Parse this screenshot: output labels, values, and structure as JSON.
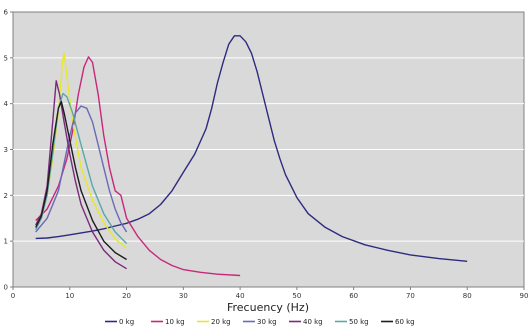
{
  "chart_data": {
    "type": "line",
    "title": "",
    "xlabel": "Frecuency (Hz)",
    "ylabel": "",
    "xlim": [
      0,
      90
    ],
    "ylim": [
      0,
      6
    ],
    "x_ticks": [
      0,
      10,
      20,
      30,
      40,
      50,
      60,
      70,
      80,
      90
    ],
    "y_ticks": [
      0,
      1,
      2,
      3,
      4,
      5,
      6
    ],
    "x_tick_labels": [
      "0",
      "10",
      "20",
      "30",
      "40",
      "50",
      "60",
      "70",
      "80",
      "90"
    ],
    "y_tick_labels": [
      "0",
      "1",
      "2",
      "3",
      "4",
      "5",
      "6"
    ],
    "grid": "horizontal",
    "legend_position": "bottom",
    "series": [
      {
        "name": "0 kg",
        "color": "#2e2a7e",
        "points": [
          [
            4,
            1.06
          ],
          [
            6,
            1.07
          ],
          [
            8,
            1.1
          ],
          [
            10,
            1.14
          ],
          [
            12,
            1.18
          ],
          [
            14,
            1.22
          ],
          [
            16,
            1.27
          ],
          [
            18,
            1.33
          ],
          [
            20,
            1.39
          ],
          [
            22,
            1.48
          ],
          [
            24,
            1.6
          ],
          [
            26,
            1.8
          ],
          [
            28,
            2.1
          ],
          [
            30,
            2.5
          ],
          [
            32,
            2.9
          ],
          [
            34,
            3.45
          ],
          [
            35,
            3.9
          ],
          [
            36,
            4.45
          ],
          [
            37,
            4.9
          ],
          [
            38,
            5.3
          ],
          [
            39,
            5.48
          ],
          [
            40,
            5.48
          ],
          [
            41,
            5.35
          ],
          [
            42,
            5.1
          ],
          [
            43,
            4.7
          ],
          [
            44,
            4.2
          ],
          [
            45,
            3.7
          ],
          [
            46,
            3.2
          ],
          [
            47,
            2.8
          ],
          [
            48,
            2.45
          ],
          [
            50,
            1.95
          ],
          [
            52,
            1.6
          ],
          [
            55,
            1.3
          ],
          [
            58,
            1.1
          ],
          [
            62,
            0.92
          ],
          [
            66,
            0.8
          ],
          [
            70,
            0.7
          ],
          [
            75,
            0.62
          ],
          [
            80,
            0.56
          ]
        ]
      },
      {
        "name": "10 kg",
        "color": "#c8287a",
        "points": [
          [
            4,
            1.45
          ],
          [
            6,
            1.7
          ],
          [
            8,
            2.2
          ],
          [
            9.5,
            2.8
          ],
          [
            10.5,
            3.4
          ],
          [
            11.5,
            4.2
          ],
          [
            12.5,
            4.8
          ],
          [
            13.3,
            5.02
          ],
          [
            14,
            4.9
          ],
          [
            15,
            4.2
          ],
          [
            16,
            3.3
          ],
          [
            17,
            2.6
          ],
          [
            18,
            2.1
          ],
          [
            19,
            2.0
          ],
          [
            20,
            1.5
          ],
          [
            22,
            1.1
          ],
          [
            24,
            0.8
          ],
          [
            26,
            0.6
          ],
          [
            28,
            0.47
          ],
          [
            30,
            0.38
          ],
          [
            33,
            0.32
          ],
          [
            36,
            0.28
          ],
          [
            40,
            0.25
          ]
        ]
      },
      {
        "name": "20 kg",
        "color": "#e8e82a",
        "points": [
          [
            4,
            1.3
          ],
          [
            5,
            1.5
          ],
          [
            6,
            2.0
          ],
          [
            7,
            2.8
          ],
          [
            8,
            3.8
          ],
          [
            8.7,
            4.9
          ],
          [
            9,
            5.1
          ],
          [
            9.5,
            4.6
          ],
          [
            10.5,
            3.6
          ],
          [
            12,
            2.6
          ],
          [
            14,
            1.9
          ],
          [
            16,
            1.4
          ],
          [
            18,
            1.05
          ],
          [
            20,
            0.85
          ]
        ]
      },
      {
        "name": "30 kg",
        "color": "#6a6ab8",
        "points": [
          [
            4,
            1.2
          ],
          [
            6,
            1.5
          ],
          [
            8,
            2.1
          ],
          [
            10,
            3.3
          ],
          [
            11,
            3.8
          ],
          [
            12,
            3.95
          ],
          [
            13,
            3.9
          ],
          [
            14,
            3.6
          ],
          [
            15,
            3.1
          ],
          [
            16,
            2.6
          ],
          [
            17,
            2.1
          ],
          [
            18,
            1.7
          ],
          [
            19,
            1.4
          ],
          [
            20,
            1.2
          ]
        ]
      },
      {
        "name": "40 kg",
        "color": "#7a2a7a",
        "points": [
          [
            4,
            1.35
          ],
          [
            5,
            1.6
          ],
          [
            6,
            2.2
          ],
          [
            7,
            3.6
          ],
          [
            7.6,
            4.5
          ],
          [
            8.2,
            4.2
          ],
          [
            9,
            3.6
          ],
          [
            10,
            2.9
          ],
          [
            11,
            2.3
          ],
          [
            12,
            1.8
          ],
          [
            14,
            1.2
          ],
          [
            16,
            0.8
          ],
          [
            18,
            0.55
          ],
          [
            20,
            0.4
          ]
        ]
      },
      {
        "name": "50 kg",
        "color": "#5aa8a8",
        "points": [
          [
            4,
            1.25
          ],
          [
            5,
            1.5
          ],
          [
            6,
            2.0
          ],
          [
            7,
            2.9
          ],
          [
            8,
            3.9
          ],
          [
            8.8,
            4.22
          ],
          [
            9.5,
            4.15
          ],
          [
            10.5,
            3.8
          ],
          [
            12,
            3.1
          ],
          [
            14,
            2.2
          ],
          [
            16,
            1.6
          ],
          [
            18,
            1.2
          ],
          [
            20,
            0.95
          ]
        ]
      },
      {
        "name": "60 kg",
        "color": "#1e1e1e",
        "points": [
          [
            4,
            1.3
          ],
          [
            5,
            1.55
          ],
          [
            6,
            2.1
          ],
          [
            7,
            3.1
          ],
          [
            8,
            3.9
          ],
          [
            8.5,
            4.05
          ],
          [
            9,
            3.8
          ],
          [
            10,
            3.2
          ],
          [
            11,
            2.6
          ],
          [
            12,
            2.1
          ],
          [
            14,
            1.45
          ],
          [
            16,
            1.0
          ],
          [
            18,
            0.75
          ],
          [
            20,
            0.6
          ]
        ]
      }
    ]
  }
}
